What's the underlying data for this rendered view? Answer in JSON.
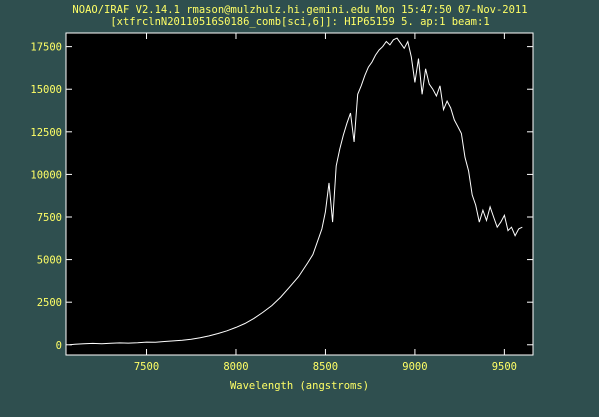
{
  "header": {
    "line1": "NOAO/IRAF V2.14.1 rmason@mulzhulz.hi.gemini.edu Mon 15:47:50 07-Nov-2011",
    "line2": "[xtfrclnN20110516S0186_comb[sci,6]]: HIP65159 5. ap:1 beam:1"
  },
  "colors": {
    "background": "#2f4f4f",
    "plot_area": "#000000",
    "axis_text": "#ffff66",
    "frame_and_curve": "#ffffff"
  },
  "chart_data": {
    "type": "line",
    "xlabel": "Wavelength (angstroms)",
    "ylabel": "",
    "xlim": [
      7050,
      9660
    ],
    "ylim": [
      -600,
      18300
    ],
    "xticks": [
      7500,
      8000,
      8500,
      9000,
      9500
    ],
    "yticks": [
      0,
      2500,
      5000,
      7500,
      10000,
      12500,
      15000,
      17500
    ],
    "grid": false,
    "series": [
      {
        "x": [
          7070,
          7100,
          7150,
          7200,
          7250,
          7300,
          7350,
          7400,
          7450,
          7500,
          7550,
          7600,
          7650,
          7700,
          7750,
          7800,
          7850,
          7900,
          7950,
          8000,
          8050,
          8100,
          8150,
          8200,
          8250,
          8300,
          8350,
          8400,
          8430,
          8450,
          8480,
          8500,
          8520,
          8540,
          8560,
          8580,
          8600,
          8620,
          8640,
          8660,
          8680,
          8700,
          8720,
          8740,
          8760,
          8780,
          8800,
          8820,
          8840,
          8860,
          8880,
          8900,
          8920,
          8940,
          8960,
          8980,
          9000,
          9020,
          9040,
          9060,
          9080,
          9100,
          9120,
          9140,
          9160,
          9180,
          9200,
          9220,
          9240,
          9260,
          9280,
          9300,
          9320,
          9340,
          9360,
          9380,
          9400,
          9420,
          9440,
          9460,
          9480,
          9500,
          9520,
          9540,
          9560,
          9580,
          9600
        ],
        "y": [
          0,
          30,
          60,
          80,
          60,
          90,
          110,
          100,
          120,
          160,
          150,
          190,
          230,
          270,
          330,
          410,
          520,
          660,
          820,
          1020,
          1250,
          1550,
          1900,
          2300,
          2800,
          3400,
          4000,
          4800,
          5300,
          5900,
          6800,
          7800,
          9500,
          7200,
          10500,
          11500,
          12300,
          13000,
          13600,
          11900,
          14700,
          15200,
          15800,
          16300,
          16600,
          17000,
          17300,
          17500,
          17800,
          17600,
          17900,
          18000,
          17700,
          17400,
          17800,
          16900,
          15400,
          16800,
          14700,
          16200,
          15300,
          15000,
          14600,
          15200,
          13800,
          14300,
          13900,
          13200,
          12800,
          12400,
          11000,
          10200,
          8800,
          8200,
          7200,
          7900,
          7300,
          8100,
          7500,
          6900,
          7200,
          7600,
          6700,
          6900,
          6400,
          6800,
          6900
        ]
      }
    ]
  }
}
